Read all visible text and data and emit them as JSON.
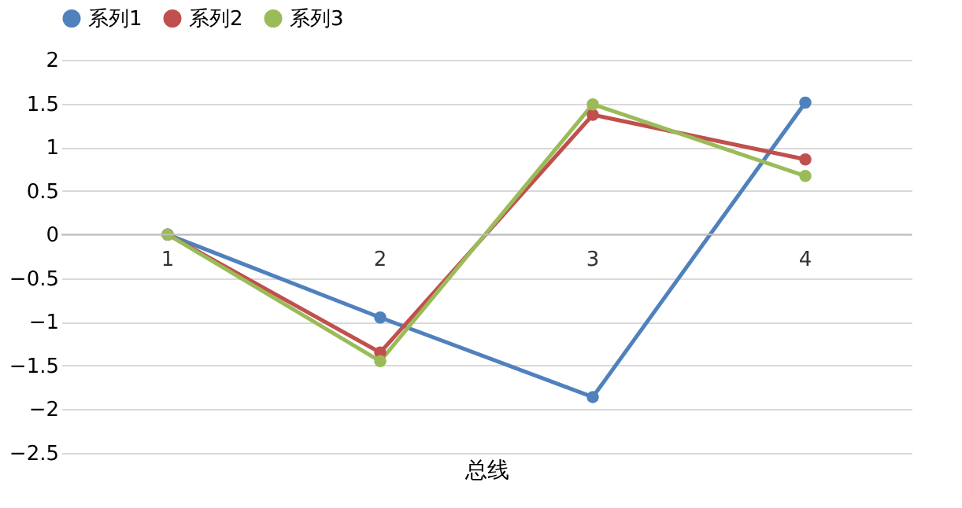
{
  "chart_data": {
    "type": "line",
    "xlabel": "总线",
    "categories": [
      "1",
      "2",
      "3",
      "4"
    ],
    "series": [
      {
        "name": "系列1",
        "color": "#4f81bd",
        "values": [
          0,
          -0.95,
          -1.86,
          1.51
        ]
      },
      {
        "name": "系列2",
        "color": "#c0504d",
        "values": [
          0,
          -1.35,
          1.37,
          0.86
        ]
      },
      {
        "name": "系列3",
        "color": "#9bbb59",
        "values": [
          0,
          -1.45,
          1.49,
          0.67
        ]
      }
    ],
    "ylim": [
      -2.5,
      2
    ],
    "yticks": [
      -2.5,
      -2,
      -1.5,
      -1,
      -0.5,
      0,
      0.5,
      1,
      1.5,
      2
    ],
    "grid": "y",
    "legend": "top",
    "marker": "circle",
    "line_style": "solid"
  }
}
